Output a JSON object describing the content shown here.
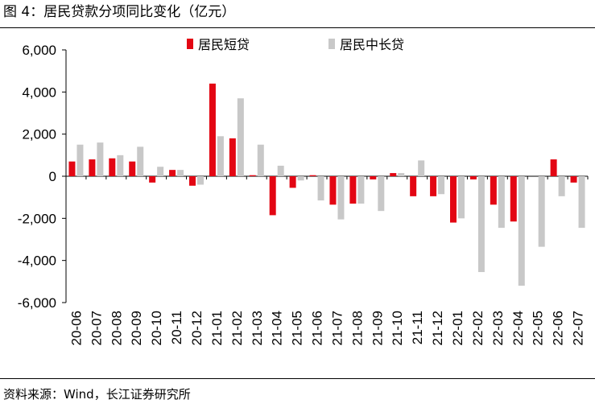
{
  "header": {
    "title": "图  4：居民贷款分项同比变化（亿元）"
  },
  "footer": {
    "source": "资料来源：Wind，长江证券研究所"
  },
  "chart_data": {
    "type": "bar",
    "title": "图  4：居民贷款分项同比变化（亿元）",
    "xlabel": "",
    "ylabel": "",
    "ylim": [
      -6000,
      6000
    ],
    "yticks": [
      -6000,
      -4000,
      -2000,
      0,
      2000,
      4000,
      6000
    ],
    "ytick_labels": [
      "-6,000",
      "-4,000",
      "-2,000",
      "0",
      "2,000",
      "4,000",
      "6,000"
    ],
    "legend_position": "top",
    "categories": [
      "20-06",
      "20-07",
      "20-08",
      "20-09",
      "20-10",
      "20-11",
      "20-12",
      "21-01",
      "21-02",
      "21-03",
      "21-04",
      "21-05",
      "21-06",
      "21-07",
      "21-08",
      "21-09",
      "21-10",
      "21-11",
      "21-12",
      "22-01",
      "22-02",
      "22-03",
      "22-04",
      "22-05",
      "22-06",
      "22-07"
    ],
    "series": [
      {
        "name": "居民短贷",
        "color": "#e30613",
        "values": [
          700,
          800,
          850,
          700,
          -300,
          300,
          -450,
          4400,
          1800,
          50,
          -1850,
          -550,
          50,
          -1350,
          -1300,
          -150,
          150,
          -950,
          -950,
          -2200,
          -150,
          -1350,
          -2150,
          0,
          800,
          -300
        ]
      },
      {
        "name": "居民中长贷",
        "color": "#c8c8c8",
        "values": [
          1500,
          1600,
          1000,
          1400,
          450,
          300,
          -400,
          1900,
          3700,
          1500,
          500,
          -200,
          -1150,
          -2050,
          -1300,
          -1650,
          150,
          750,
          -850,
          -2000,
          -4550,
          -2450,
          -5200,
          -3350,
          -950,
          -2450
        ]
      }
    ]
  }
}
